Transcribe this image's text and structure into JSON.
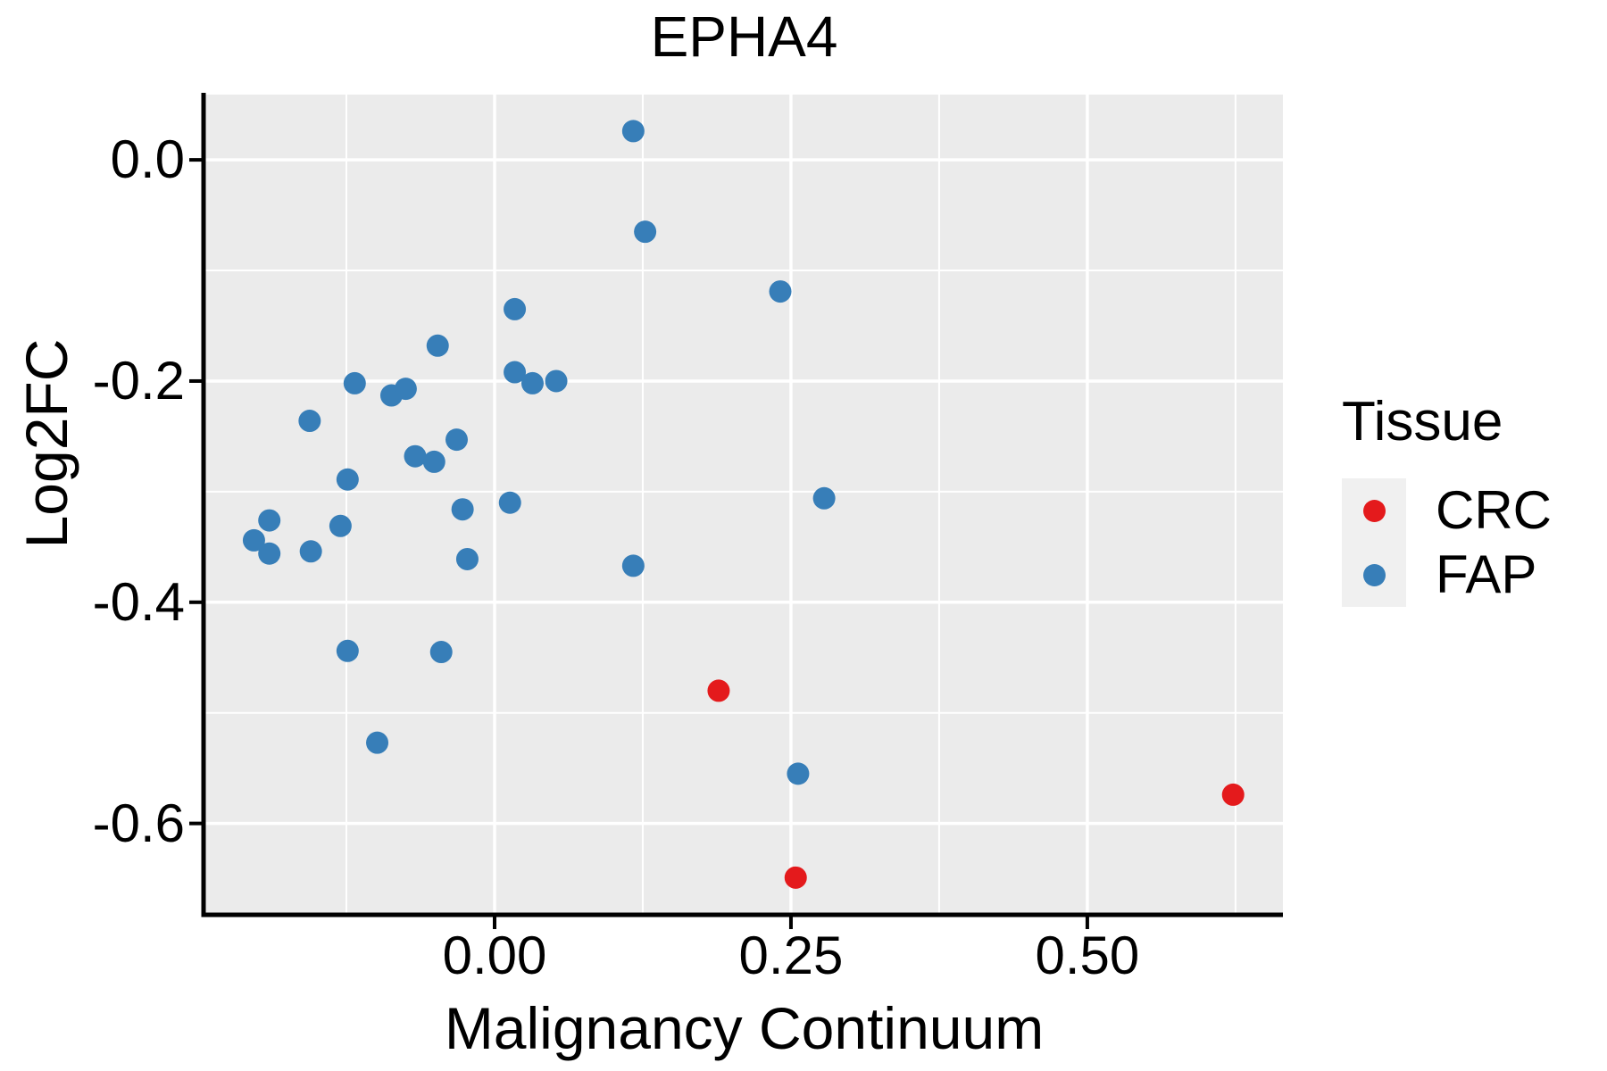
{
  "title": "EPHA4",
  "x_axis": {
    "label": "Malignancy Continuum"
  },
  "y_axis": {
    "label": "Log2FC"
  },
  "legend": {
    "title": "Tissue",
    "items": [
      {
        "label": "CRC",
        "color": "#E41A1C"
      },
      {
        "label": "FAP",
        "color": "#377EB8"
      }
    ]
  },
  "colors": {
    "panel_bg": "#EBEBEB",
    "grid": "#FFFFFF",
    "axis": "#000000",
    "text": "#000000",
    "legend_key_bg": "#F0F0F0",
    "crc": "#E41A1C",
    "fap": "#377EB8"
  },
  "chart_data": {
    "type": "scatter",
    "title": "EPHA4",
    "xlabel": "Malignancy Continuum",
    "ylabel": "Log2FC",
    "xlim": [
      -0.244,
      0.665
    ],
    "ylim": [
      -0.681,
      0.059
    ],
    "grid": "major+minor",
    "legend_position": "right",
    "x_ticks": [
      {
        "value": 0.0,
        "label": "0.00"
      },
      {
        "value": 0.25,
        "label": "0.25"
      },
      {
        "value": 0.5,
        "label": "0.50"
      }
    ],
    "y_ticks": [
      {
        "value": 0.0,
        "label": "0.0"
      },
      {
        "value": -0.2,
        "label": "-0.2"
      },
      {
        "value": -0.4,
        "label": "-0.4"
      },
      {
        "value": -0.6,
        "label": "-0.6"
      }
    ],
    "x_minor_gridlines": [
      -0.125,
      0.125,
      0.375,
      0.625
    ],
    "y_minor_gridlines": [
      -0.5,
      -0.3,
      -0.1
    ],
    "series": [
      {
        "name": "FAP",
        "color": "#377EB8",
        "points": [
          [
            0.117,
            0.026
          ],
          [
            0.127,
            -0.065
          ],
          [
            0.241,
            -0.119
          ],
          [
            0.017,
            -0.135
          ],
          [
            -0.048,
            -0.168
          ],
          [
            -0.118,
            -0.202
          ],
          [
            -0.087,
            -0.213
          ],
          [
            -0.075,
            -0.207
          ],
          [
            0.017,
            -0.192
          ],
          [
            0.032,
            -0.202
          ],
          [
            0.052,
            -0.2
          ],
          [
            -0.156,
            -0.236
          ],
          [
            -0.032,
            -0.253
          ],
          [
            -0.067,
            -0.268
          ],
          [
            -0.051,
            -0.273
          ],
          [
            -0.124,
            -0.289
          ],
          [
            -0.027,
            -0.316
          ],
          [
            0.013,
            -0.31
          ],
          [
            0.278,
            -0.306
          ],
          [
            -0.19,
            -0.326
          ],
          [
            -0.203,
            -0.344
          ],
          [
            -0.19,
            -0.356
          ],
          [
            -0.155,
            -0.354
          ],
          [
            -0.13,
            -0.331
          ],
          [
            -0.023,
            -0.361
          ],
          [
            0.117,
            -0.367
          ],
          [
            -0.124,
            -0.444
          ],
          [
            -0.045,
            -0.445
          ],
          [
            -0.099,
            -0.527
          ],
          [
            0.256,
            -0.555
          ]
        ]
      },
      {
        "name": "CRC",
        "color": "#E41A1C",
        "points": [
          [
            0.189,
            -0.48
          ],
          [
            0.254,
            -0.649
          ],
          [
            0.623,
            -0.574
          ]
        ]
      }
    ]
  }
}
